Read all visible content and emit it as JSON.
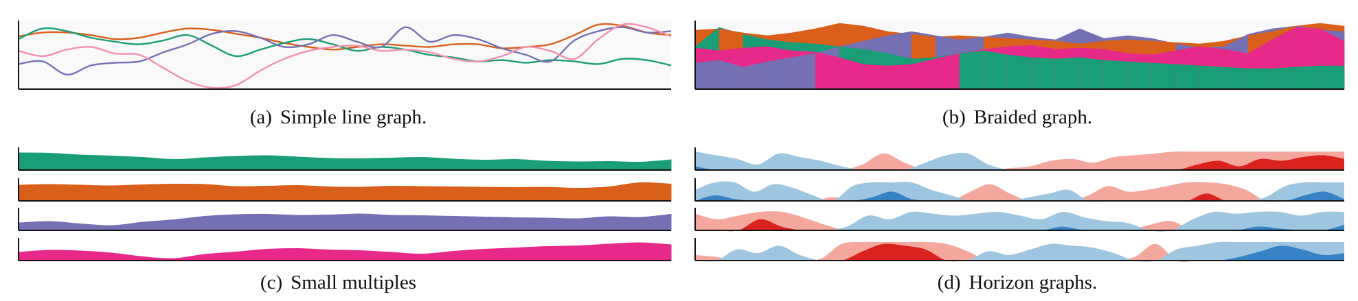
{
  "chart_data": [
    {
      "type": "line",
      "caption_label": "(a)",
      "caption_text": "Simple line graph.",
      "grid": false,
      "series": [
        {
          "color": "#d95f1a",
          "values": [
            0.78,
            0.84,
            0.84,
            0.8,
            0.74,
            0.76,
            0.84,
            0.9,
            0.88,
            0.82,
            0.76,
            0.68,
            0.62,
            0.58,
            0.62,
            0.66,
            0.64,
            0.62,
            0.66,
            0.66,
            0.6,
            0.62,
            0.66,
            0.8,
            0.96,
            0.94,
            0.84,
            0.8
          ]
        },
        {
          "color": "#1a9e77",
          "values": [
            0.74,
            0.9,
            0.86,
            0.76,
            0.7,
            0.66,
            0.72,
            0.8,
            0.64,
            0.48,
            0.58,
            0.68,
            0.74,
            0.66,
            0.56,
            0.62,
            0.58,
            0.5,
            0.46,
            0.4,
            0.42,
            0.38,
            0.42,
            0.4,
            0.36,
            0.44,
            0.42,
            0.34
          ]
        },
        {
          "color": "#7570b3",
          "values": [
            0.36,
            0.4,
            0.2,
            0.34,
            0.38,
            0.4,
            0.54,
            0.66,
            0.82,
            0.86,
            0.76,
            0.62,
            0.66,
            0.8,
            0.7,
            0.62,
            0.92,
            0.7,
            0.8,
            0.74,
            0.6,
            0.5,
            0.4,
            0.72,
            0.86,
            0.92,
            0.84,
            0.86
          ]
        },
        {
          "color": "#f48fb1",
          "values": [
            0.56,
            0.48,
            0.58,
            0.62,
            0.52,
            0.5,
            0.3,
            0.1,
            0.0,
            0.04,
            0.26,
            0.44,
            0.56,
            0.62,
            0.64,
            0.56,
            0.58,
            0.54,
            0.44,
            0.4,
            0.48,
            0.62,
            0.56,
            0.44,
            0.74,
            0.96,
            0.92,
            0.78
          ]
        }
      ]
    },
    {
      "type": "area",
      "caption_label": "(b)",
      "caption_text": "Braided graph.",
      "grid": false,
      "series": [
        {
          "color": "#1a9e77",
          "values": [
            0.62,
            0.9,
            0.8,
            0.72,
            0.68,
            0.66,
            0.62,
            0.58,
            0.52,
            0.44,
            0.46,
            0.52,
            0.56,
            0.5,
            0.46,
            0.44,
            0.46,
            0.42,
            0.4,
            0.38,
            0.36,
            0.34,
            0.32,
            0.3,
            0.3,
            0.32,
            0.34,
            0.34
          ]
        },
        {
          "color": "#d95f1a",
          "values": [
            0.86,
            0.88,
            0.82,
            0.78,
            0.82,
            0.88,
            0.96,
            0.92,
            0.84,
            0.8,
            0.76,
            0.78,
            0.76,
            0.74,
            0.72,
            0.7,
            0.66,
            0.7,
            0.72,
            0.7,
            0.68,
            0.66,
            0.7,
            0.78,
            0.84,
            0.92,
            0.96,
            0.92
          ]
        },
        {
          "color": "#7570b3",
          "values": [
            0.38,
            0.42,
            0.32,
            0.4,
            0.46,
            0.52,
            0.62,
            0.7,
            0.78,
            0.84,
            0.78,
            0.72,
            0.76,
            0.82,
            0.76,
            0.72,
            0.88,
            0.74,
            0.78,
            0.74,
            0.66,
            0.6,
            0.62,
            0.8,
            0.88,
            0.92,
            0.86,
            0.84
          ]
        },
        {
          "color": "#e7298a",
          "values": [
            0.6,
            0.56,
            0.6,
            0.62,
            0.56,
            0.54,
            0.46,
            0.36,
            0.34,
            0.36,
            0.44,
            0.52,
            0.58,
            0.62,
            0.64,
            0.58,
            0.6,
            0.58,
            0.52,
            0.5,
            0.56,
            0.62,
            0.58,
            0.52,
            0.72,
            0.9,
            0.88,
            0.7
          ]
        }
      ]
    },
    {
      "type": "area",
      "caption_label": "(c)",
      "caption_text": "Small multiples",
      "grid": false,
      "series": [
        {
          "color": "#1a9e77",
          "values": [
            0.92,
            0.9,
            0.8,
            0.74,
            0.66,
            0.54,
            0.64,
            0.72,
            0.76,
            0.68,
            0.6,
            0.58,
            0.62,
            0.66,
            0.56,
            0.5,
            0.54,
            0.44,
            0.4,
            0.42,
            0.38,
            0.52
          ]
        },
        {
          "color": "#d95f1a",
          "values": [
            0.84,
            0.88,
            0.84,
            0.8,
            0.86,
            0.9,
            0.88,
            0.76,
            0.78,
            0.82,
            0.74,
            0.72,
            0.78,
            0.76,
            0.74,
            0.72,
            0.7,
            0.72,
            0.66,
            0.74,
            0.98,
            0.9
          ]
        },
        {
          "color": "#7570b3",
          "values": [
            0.36,
            0.44,
            0.3,
            0.2,
            0.4,
            0.54,
            0.74,
            0.84,
            0.86,
            0.8,
            0.82,
            0.88,
            0.8,
            0.78,
            0.74,
            0.7,
            0.66,
            0.64,
            0.6,
            0.72,
            0.68,
            0.86
          ]
        },
        {
          "color": "#e7298a",
          "values": [
            0.4,
            0.52,
            0.48,
            0.36,
            0.14,
            0.04,
            0.28,
            0.42,
            0.58,
            0.62,
            0.54,
            0.5,
            0.4,
            0.3,
            0.46,
            0.58,
            0.66,
            0.74,
            0.78,
            0.88,
            0.96,
            0.84
          ]
        }
      ]
    },
    {
      "type": "area",
      "caption_label": "(d)",
      "caption_text": "Horizon graphs.",
      "grid": false,
      "band_colors": {
        "pos1": "#f4a79c",
        "pos2": "#d9211e",
        "neg1": "#9fc6e0",
        "neg2": "#3682c4"
      },
      "series": [
        {
          "values": [
            -1.2,
            -0.8,
            -0.6,
            -0.3,
            -0.9,
            -0.7,
            -0.5,
            -0.2,
            0.3,
            0.9,
            0.4,
            -0.4,
            -0.8,
            -0.9,
            -0.3,
            0.1,
            0.2,
            0.5,
            0.6,
            0.4,
            0.7,
            0.8,
            0.9,
            1.0,
            1.3,
            1.5,
            1.2,
            1.6,
            1.5,
            1.7,
            1.8,
            1.6
          ]
        },
        {
          "values": [
            -0.6,
            -1.3,
            -1.1,
            -0.5,
            -0.9,
            -0.7,
            -0.3,
            0.2,
            -0.8,
            -1.2,
            -1.5,
            -1.1,
            -0.6,
            -0.3,
            0.5,
            0.9,
            0.4,
            -0.2,
            -0.4,
            -0.6,
            0.3,
            0.8,
            0.5,
            0.6,
            0.8,
            1.0,
            1.4,
            0.9,
            0.6,
            -0.2,
            -0.8,
            -1.3,
            -1.5,
            -1.1
          ]
        },
        {
          "values": [
            0.9,
            0.6,
            0.8,
            1.6,
            1.2,
            0.7,
            0.3,
            -0.2,
            -0.8,
            -0.6,
            -1.0,
            -0.9,
            -0.8,
            -0.9,
            -1.0,
            -0.8,
            -0.6,
            -1.2,
            -0.7,
            -0.5,
            -0.4,
            0.3,
            0.5,
            -0.6,
            -1.0,
            -0.9,
            -1.2,
            -1.1,
            -0.8,
            -1.0,
            -1.3
          ]
        },
        {
          "values": [
            0.3,
            0.2,
            -0.6,
            -0.4,
            -0.8,
            -0.3,
            0.1,
            0.9,
            1.5,
            1.9,
            1.8,
            1.6,
            0.9,
            0.5,
            -0.5,
            -0.3,
            -0.6,
            -0.9,
            -0.8,
            -0.7,
            -0.4,
            0.2,
            0.9,
            -0.6,
            -0.8,
            -1.0,
            -1.2,
            -1.5,
            -1.8,
            -1.6,
            -1.3,
            -1.4
          ]
        }
      ]
    }
  ]
}
